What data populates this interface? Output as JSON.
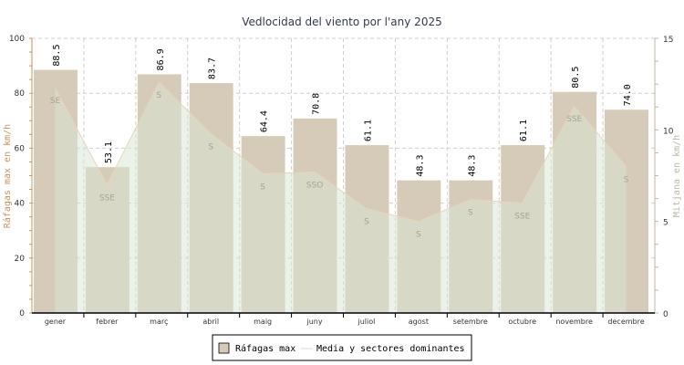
{
  "chart_data": {
    "type": "bar",
    "title": "Vedlocidad del viento por l'any 2025",
    "categories": [
      "gener",
      "febrer",
      "març",
      "abril",
      "maig",
      "juny",
      "juliol",
      "agost",
      "setembre",
      "octubre",
      "novembre",
      "decembre"
    ],
    "ylabel": "Ráfagas max en km/h",
    "y2label": "Mitjana en km/h",
    "ylim": [
      0,
      100
    ],
    "y2lim": [
      0,
      15
    ],
    "yticks": [
      "0",
      "20",
      "40",
      "60",
      "80",
      "100"
    ],
    "y2ticks": [
      "0",
      "5",
      "10",
      "15"
    ],
    "grid": true,
    "legend_position": "bottom",
    "series": [
      {
        "name": "Ráfagas max",
        "type": "bar",
        "axis": "left",
        "color": "#d6cab8",
        "values": [
          88.5,
          53.1,
          86.9,
          83.7,
          64.4,
          70.8,
          61.1,
          48.3,
          48.3,
          61.1,
          80.5,
          74.0
        ],
        "labels": [
          "88.5",
          "53.1",
          "86.9",
          "83.7",
          "64.4",
          "70.8",
          "61.1",
          "48.3",
          "48.3",
          "61.1",
          "80.5",
          "74.0"
        ]
      },
      {
        "name": "Media y sectores dominantes",
        "type": "area",
        "axis": "right",
        "color": "#e8f0e4",
        "line_color": "#e6d6b8",
        "values": [
          12.3,
          7.0,
          12.6,
          9.8,
          7.6,
          7.7,
          5.7,
          5.0,
          6.2,
          6.0,
          11.3,
          8.0
        ],
        "directions": [
          "SE",
          "SSE",
          "S",
          "S",
          "S",
          "SSO",
          "S",
          "S",
          "S",
          "SSE",
          "SSE",
          "S"
        ]
      }
    ]
  }
}
